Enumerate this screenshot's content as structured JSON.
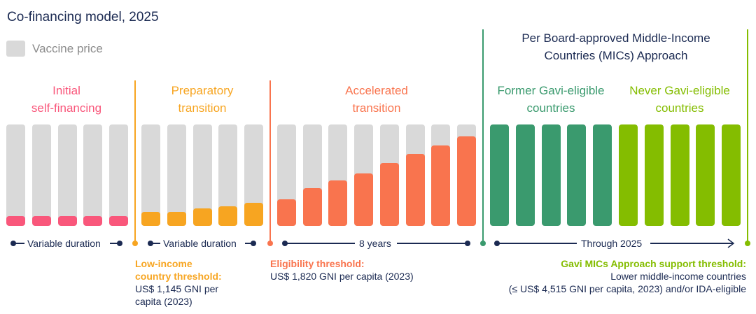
{
  "title": "Co-financing model, 2025",
  "legend": {
    "label": "Vaccine price",
    "color": "#d9d9d9"
  },
  "colors": {
    "pink": "#f9577b",
    "orange": "#f7a521",
    "red": "#f9744e",
    "green": "#3a9a6e",
    "lime": "#84bd00",
    "navy": "#1b2a52"
  },
  "mics_header": {
    "line1": "Per Board-approved Middle-Income",
    "line2": "Countries (MICs) Approach"
  },
  "phases": [
    {
      "line1": "Initial",
      "line2": "self-financing",
      "color": "#f9577b",
      "country_share": [
        0.1,
        0.1,
        0.1,
        0.1,
        0.1
      ]
    },
    {
      "line1": "Preparatory",
      "line2": "transition",
      "color": "#f7a521",
      "country_share": [
        0.14,
        0.14,
        0.17,
        0.19,
        0.23
      ]
    },
    {
      "line1": "Accelerated",
      "line2": "transition",
      "color": "#f9744e",
      "country_share": [
        0.26,
        0.37,
        0.45,
        0.52,
        0.62,
        0.71,
        0.79,
        0.88
      ]
    },
    {
      "line1": "Former Gavi-eligible",
      "line2": "countries",
      "color": "#3a9a6e",
      "country_share": [
        1,
        1,
        1,
        1,
        1
      ]
    },
    {
      "line1": "Never Gavi-eligible",
      "line2": "countries",
      "color": "#84bd00",
      "country_share": [
        1,
        1,
        1,
        1,
        1
      ]
    }
  ],
  "timeline": {
    "t1": "Variable duration",
    "t2": "Variable duration",
    "t3": "8 years",
    "t4": "Through 2025"
  },
  "thresholds": {
    "low_income": {
      "title1": "Low-income",
      "title2": "country threshold:",
      "text1": "US$ 1,145 GNI per",
      "text2": "capita (2023)"
    },
    "eligibility": {
      "title": "Eligibility threshold:",
      "text": "US$ 1,820 GNI per capita (2023)"
    },
    "mics": {
      "title": "Gavi MICs Approach support threshold:",
      "text1": "Lower middle-income countries",
      "text2": "(≤ US$ 4,515 GNI per capita, 2023) and/or IDA-eligible"
    }
  }
}
